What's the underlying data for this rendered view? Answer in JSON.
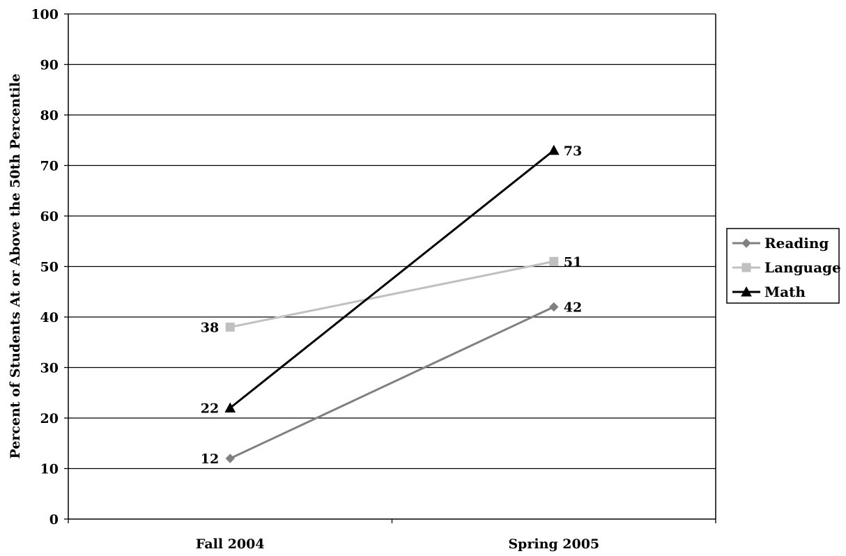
{
  "chart_data": {
    "type": "line",
    "title": "",
    "xlabel": "",
    "ylabel": "Percent of Students At or Above the 50th Percentile",
    "ylim": [
      0,
      100
    ],
    "yticks": [
      0,
      10,
      20,
      30,
      40,
      50,
      60,
      70,
      80,
      90,
      100
    ],
    "categories": [
      "Fall 2004",
      "Spring 2005"
    ],
    "grid": "horizontal",
    "legend_position": "right",
    "series": [
      {
        "name": "Reading",
        "values": [
          12,
          42
        ],
        "color": "#808080",
        "marker": "diamond"
      },
      {
        "name": "Language",
        "values": [
          38,
          51
        ],
        "color": "#c0c0c0",
        "marker": "square"
      },
      {
        "name": "Math",
        "values": [
          22,
          73
        ],
        "color": "#000000",
        "marker": "triangle"
      }
    ]
  }
}
